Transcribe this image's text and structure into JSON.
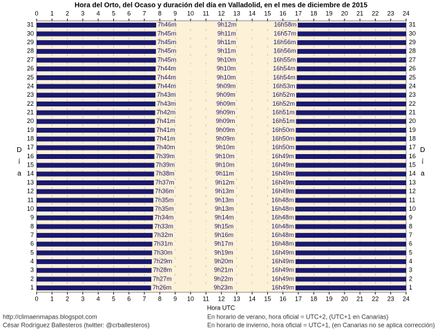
{
  "chart_data": {
    "type": "daylight",
    "title": "Hora del Orto, del Ocaso y duración del día en Valladolid, en el mes de diciembre de 2015",
    "x_label": "Hora UTC",
    "y_label": "Día",
    "xlim": [
      0,
      24
    ],
    "xticks": [
      0,
      1,
      2,
      3,
      4,
      5,
      6,
      7,
      8,
      9,
      10,
      11,
      12,
      13,
      14,
      15,
      16,
      17,
      18,
      19,
      20,
      21,
      22,
      23,
      24
    ],
    "grid": true,
    "night_color": "#191970",
    "day_color": "#fdf1d8",
    "categories": [
      1,
      2,
      3,
      4,
      5,
      6,
      7,
      8,
      9,
      10,
      11,
      12,
      13,
      14,
      15,
      16,
      17,
      18,
      19,
      20,
      21,
      22,
      23,
      24,
      25,
      26,
      27,
      28,
      29,
      30,
      31
    ],
    "sunrise": {
      "values": [
        7.4333,
        7.45,
        7.4667,
        7.4833,
        7.5,
        7.5167,
        7.5333,
        7.55,
        7.5667,
        7.5833,
        7.5833,
        7.6,
        7.6167,
        7.6333,
        7.65,
        7.65,
        7.6667,
        7.6833,
        7.6833,
        7.6833,
        7.7,
        7.7167,
        7.7167,
        7.7333,
        7.7333,
        7.7333,
        7.75,
        7.75,
        7.75,
        7.75,
        7.7667
      ],
      "value_labels": [
        "7h26m",
        "7h27m",
        "7h28m",
        "7h29m",
        "7h30m",
        "7h31m",
        "7h32m",
        "7h33m",
        "7h34m",
        "7h35m",
        "7h35m",
        "7h36m",
        "7h37m",
        "7h38m",
        "7h39m",
        "7h39m",
        "7h40m",
        "7h41m",
        "7h41m",
        "7h41m",
        "7h42m",
        "7h43m",
        "7h43m",
        "7h44m",
        "7h44m",
        "7h44m",
        "7h45m",
        "7h45m",
        "7h45m",
        "7h45m",
        "7h46m"
      ]
    },
    "day_length": {
      "values": [
        9.3833,
        9.3667,
        9.35,
        9.3333,
        9.3167,
        9.2833,
        9.2667,
        9.25,
        9.2333,
        9.2167,
        9.2167,
        9.2167,
        9.2,
        9.1833,
        9.1667,
        9.1667,
        9.1667,
        9.15,
        9.15,
        9.15,
        9.15,
        9.15,
        9.15,
        9.15,
        9.1667,
        9.1667,
        9.1667,
        9.1833,
        9.1833,
        9.1833,
        9.2
      ],
      "value_labels": [
        "9h23m",
        "9h22m",
        "9h21m",
        "9h20m",
        "9h19m",
        "9h17m",
        "9h16m",
        "9h15m",
        "9h14m",
        "9h13m",
        "9h13m",
        "9h13m",
        "9h12m",
        "9h11m",
        "9h10m",
        "9h10m",
        "9h10m",
        "9h09m",
        "9h09m",
        "9h09m",
        "9h09m",
        "9h09m",
        "9h09m",
        "9h09m",
        "9h10m",
        "9h10m",
        "9h10m",
        "9h11m",
        "9h11m",
        "9h11m",
        "9h12m"
      ]
    },
    "sunset": {
      "values": [
        16.8167,
        16.8167,
        16.8167,
        16.8167,
        16.8167,
        16.8,
        16.8,
        16.8,
        16.8,
        16.8,
        16.8,
        16.8167,
        16.8167,
        16.8167,
        16.8167,
        16.8167,
        16.8333,
        16.8333,
        16.8333,
        16.85,
        16.85,
        16.8667,
        16.8667,
        16.8833,
        16.9,
        16.9,
        16.9167,
        16.9333,
        16.9333,
        16.95,
        16.9667
      ],
      "value_labels": [
        "16h49m",
        "16h49m",
        "16h49m",
        "16h49m",
        "16h49m",
        "16h48m",
        "16h48m",
        "16h48m",
        "16h48m",
        "16h48m",
        "16h48m",
        "16h49m",
        "16h49m",
        "16h49m",
        "16h49m",
        "16h49m",
        "16h50m",
        "16h50m",
        "16h50m",
        "16h51m",
        "16h51m",
        "16h52m",
        "16h52m",
        "16h53m",
        "16h54m",
        "16h54m",
        "16h55m",
        "16h56m",
        "16h56m",
        "16h57m",
        "16h58m"
      ]
    },
    "footer": {
      "url": "http://climaenmapas.blogspot.com",
      "author": "César Rodríguez Ballesteros (twitter: @crballesteros)",
      "summer": "En horario de verano, hora oficial = UTC+2, (UTC+1 en Canarias)",
      "winter": "En horario de invierno, hora oficial = UTC+1, (en Canarias no se aplica corrección)"
    }
  }
}
